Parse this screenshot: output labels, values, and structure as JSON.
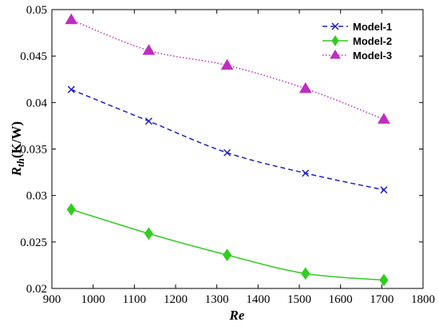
{
  "chart_data": {
    "type": "line",
    "xlabel": "Re",
    "ylabel_main": "R",
    "ylabel_sub": "th",
    "ylabel_unit": "(K/W)",
    "xlim": [
      900,
      1800
    ],
    "ylim": [
      0.02,
      0.05
    ],
    "xticks": [
      900,
      1000,
      1100,
      1200,
      1300,
      1400,
      1500,
      1600,
      1700,
      1800
    ],
    "xtick_labels": [
      "900",
      "1000",
      "1100",
      "1200",
      "1300",
      "1400",
      "1500",
      "1600",
      "1700",
      "1800"
    ],
    "yticks": [
      0.02,
      0.025,
      0.03,
      0.035,
      0.04,
      0.045,
      0.05
    ],
    "ytick_labels": [
      "0.02",
      "0.025",
      "0.03",
      "0.035",
      "0.04",
      "0.045",
      "0.05"
    ],
    "grid": false,
    "legend_position": "top-right",
    "x": [
      947,
      1135,
      1325,
      1515,
      1705
    ],
    "series": [
      {
        "name": "Model-1",
        "values": [
          0.0414,
          0.038,
          0.0346,
          0.0324,
          0.0306
        ],
        "color": "#1f1fc8",
        "line": "dashed",
        "marker": "x"
      },
      {
        "name": "Model-2",
        "values": [
          0.0285,
          0.0259,
          0.0236,
          0.0216,
          0.0209
        ],
        "color": "#33cc22",
        "line": "solid",
        "marker": "diamond"
      },
      {
        "name": "Model-3",
        "values": [
          0.0489,
          0.0456,
          0.044,
          0.0415,
          0.0382
        ],
        "color": "#c02cc0",
        "line": "dotted",
        "marker": "triangle"
      }
    ]
  }
}
